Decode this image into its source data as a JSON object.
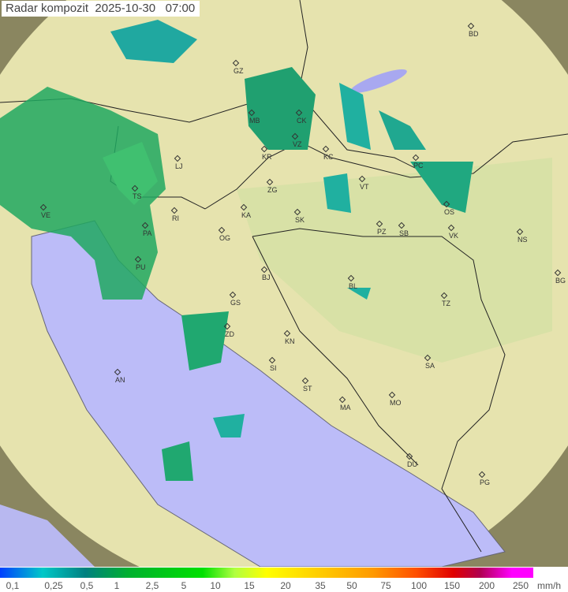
{
  "title": "Radar kompozit",
  "date": "2025-10-30",
  "time": "07:00",
  "legend": {
    "unit": "mm/h",
    "ticks": [
      "0,1",
      "0,25",
      "0,5",
      "1",
      "2,5",
      "5",
      "10",
      "15",
      "20",
      "35",
      "50",
      "75",
      "100",
      "150",
      "200",
      "250"
    ]
  },
  "colors": {
    "sea": "#bcbcf8",
    "coverage": "#e8e6b0",
    "outside": "#8a8660",
    "rain_light": "#20b0a0",
    "rain_mid": "#20a050"
  },
  "cities": [
    "BD",
    "GZ",
    "MB",
    "CK",
    "VZ",
    "KR",
    "KC",
    "LJ",
    "TS",
    "ZG",
    "VT",
    "PC",
    "OS",
    "VE",
    "RI",
    "KA",
    "SK",
    "PZ",
    "SB",
    "VK",
    "NS",
    "PA",
    "OG",
    "PU",
    "BJ",
    "BL",
    "BG",
    "TZ",
    "GS",
    "ZD",
    "KN",
    "SA",
    "SI",
    "AN",
    "ST",
    "MA",
    "MO",
    "DU",
    "PG"
  ]
}
